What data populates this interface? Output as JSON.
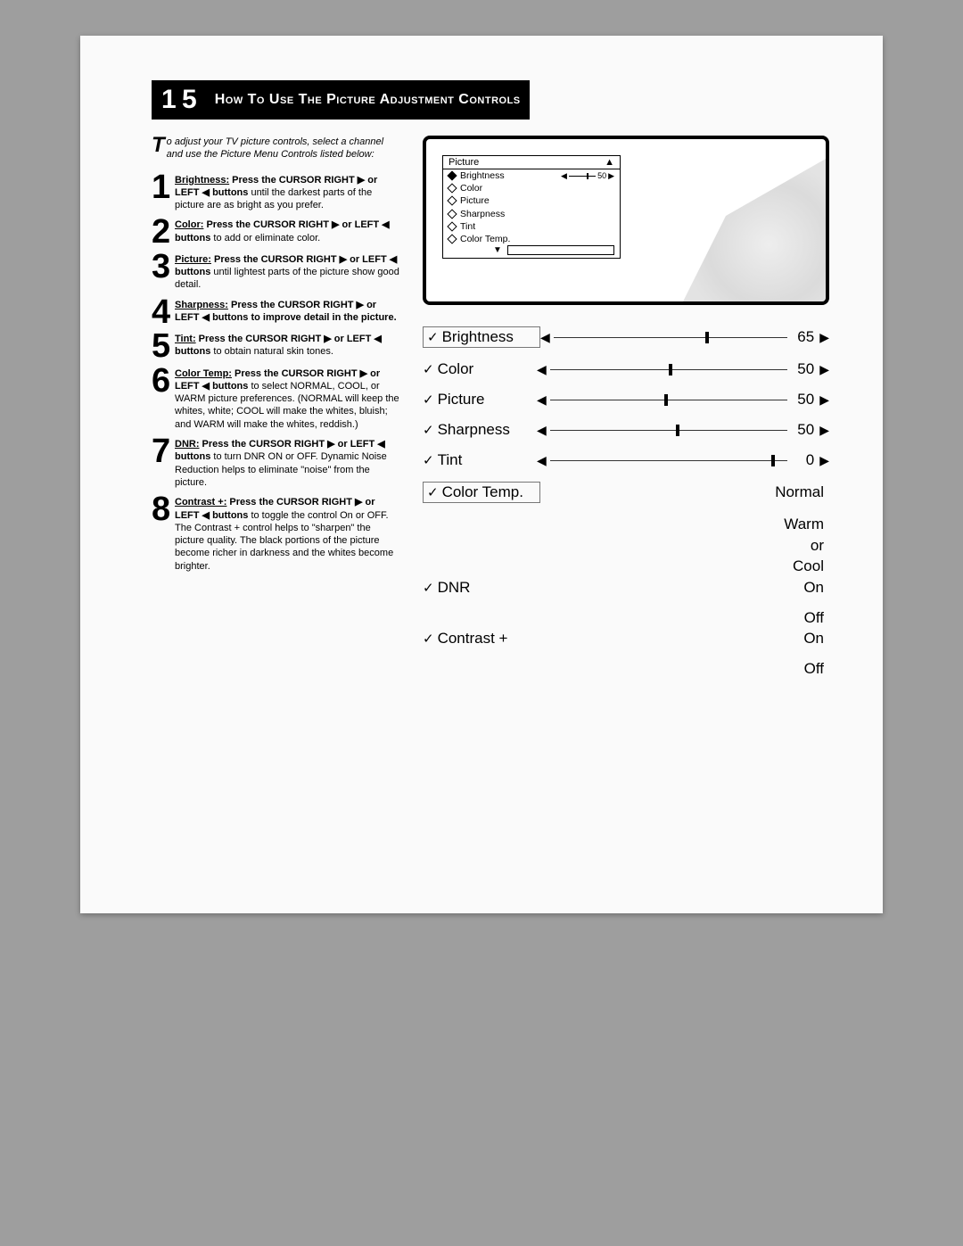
{
  "page_number": "1 5",
  "title": "How To Use The Picture Adjustment Controls",
  "intro_dropcap": "T",
  "intro_text": "o adjust your TV picture controls, select a channel and use the Picture Menu Controls listed below:",
  "steps": [
    {
      "n": "1",
      "ul": "Brightness:",
      "bold": "  Press the CURSOR RIGHT ▶ or LEFT ◀ buttons",
      "rest": " until the darkest parts of the picture are as bright as you prefer."
    },
    {
      "n": "2",
      "ul": "Color:",
      "bold": " Press the CURSOR RIGHT  ▶  or LEFT ◀  buttons",
      "rest": " to add or eliminate color."
    },
    {
      "n": "3",
      "ul": "Picture:",
      "bold": "  Press the CURSOR RIGHT ▶ or LEFT ◀ buttons",
      "rest": " until lightest parts of the   picture show good detail."
    },
    {
      "n": "4",
      "ul": "Sharpness:",
      "bold": " Press the CURSOR RIGHT ▶ or LEFT ◀ buttons to improve detail in the picture.",
      "rest": ""
    },
    {
      "n": "5",
      "ul": "Tint:",
      "bold": " Press the CURSOR RIGHT ▶ or LEFT ◀ buttons",
      "rest": "  to obtain natural skin tones."
    },
    {
      "n": "6",
      "ul": "Color Temp:",
      "bold": " Press the CURSOR RIGHT ▶ or LEFT ◀ buttons",
      "rest": " to select NORMAL, COOL, or WARM picture preferences. (NORMAL will keep the whites, white; COOL will make the whites, bluish; and WARM will make the whites, reddish.)"
    },
    {
      "n": "7",
      "ul": "DNR:",
      "bold": " Press the CURSOR RIGHT ▶ or LEFT ◀ buttons",
      "rest": " to turn DNR ON or OFF. Dynamic Noise Reduction helps to eliminate \"noise\" from the picture."
    },
    {
      "n": "8",
      "ul": "Contrast +:",
      "bold": "  Press the CURSOR RIGHT ▶ or LEFT ◀ buttons",
      "rest": " to toggle the control On or OFF. The Contrast + control helps to \"sharpen\" the picture quality. The black portions of the picture become richer in darkness and the whites become brighter."
    }
  ],
  "tv_menu": {
    "title": "Picture",
    "up_arrow": "▲",
    "down_arrow": "▼",
    "selected": {
      "label": "Brightness",
      "value": "50",
      "marker_pct": 65
    },
    "items": [
      "Color",
      "Picture",
      "Sharpness",
      "Tint",
      "Color Temp."
    ]
  },
  "adjustments": {
    "sliders": [
      {
        "label": "Brightness",
        "value": "65",
        "marker_pct": 65,
        "boxed": true
      },
      {
        "label": "Color",
        "value": "50",
        "marker_pct": 50,
        "boxed": false
      },
      {
        "label": "Picture",
        "value": "50",
        "marker_pct": 48,
        "boxed": false
      },
      {
        "label": "Sharpness",
        "value": "50",
        "marker_pct": 53,
        "boxed": false
      },
      {
        "label": "Tint",
        "value": "0",
        "marker_pct": 93,
        "boxed": false
      }
    ],
    "text_rows": [
      {
        "label": "Color Temp.",
        "value": "Normal",
        "sub": [
          "Warm",
          "or",
          "Cool"
        ],
        "boxed": true
      },
      {
        "label": "DNR",
        "value": "On",
        "sub": [
          "Off"
        ],
        "boxed": false
      },
      {
        "label": "Contrast +",
        "value": "On",
        "sub": [
          "Off"
        ],
        "boxed": false
      }
    ]
  }
}
